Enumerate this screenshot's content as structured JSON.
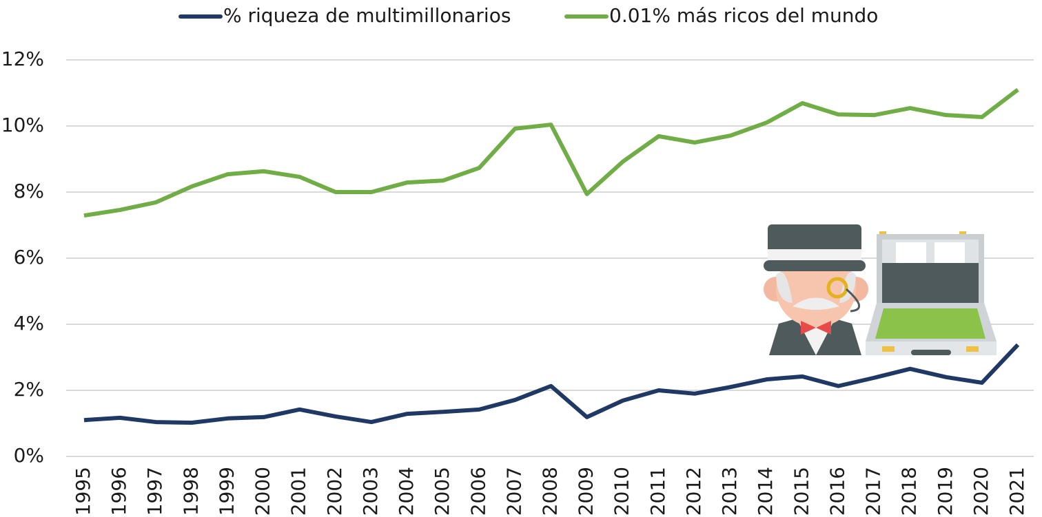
{
  "chart_data": {
    "type": "line",
    "categories": [
      "1995",
      "1996",
      "1997",
      "1998",
      "1999",
      "2000",
      "2001",
      "2002",
      "2003",
      "2004",
      "2005",
      "2006",
      "2007",
      "2008",
      "2009",
      "2010",
      "2011",
      "2012",
      "2013",
      "2014",
      "2015",
      "2016",
      "2017",
      "2018",
      "2019",
      "2020",
      "2021"
    ],
    "series": [
      {
        "name": "% riqueza de multimillonarios",
        "color": "#1f3864",
        "values": [
          1.1,
          1.17,
          1.04,
          1.02,
          1.15,
          1.19,
          1.42,
          1.21,
          1.04,
          1.29,
          1.35,
          1.42,
          1.71,
          2.13,
          1.19,
          1.69,
          2.0,
          1.9,
          2.1,
          2.33,
          2.42,
          2.13,
          2.38,
          2.65,
          2.4,
          2.23,
          3.38
        ]
      },
      {
        "name": "0.01% más ricos del mundo",
        "color": "#70ad47",
        "values": [
          7.29,
          7.46,
          7.69,
          8.17,
          8.54,
          8.63,
          8.46,
          8.0,
          8.0,
          8.29,
          8.35,
          8.73,
          9.92,
          10.04,
          7.94,
          8.92,
          9.69,
          9.5,
          9.71,
          10.1,
          10.69,
          10.35,
          10.33,
          10.54,
          10.33,
          10.27,
          11.1
        ]
      }
    ],
    "ylim": [
      0,
      12
    ],
    "yticks": [
      {
        "value": 0,
        "label": "0%"
      },
      {
        "value": 2,
        "label": "2%"
      },
      {
        "value": 4,
        "label": "4%"
      },
      {
        "value": 6,
        "label": "6%"
      },
      {
        "value": 8,
        "label": "8%"
      },
      {
        "value": 10,
        "label": "10%"
      },
      {
        "value": 12,
        "label": "12%"
      }
    ],
    "grid": true
  }
}
